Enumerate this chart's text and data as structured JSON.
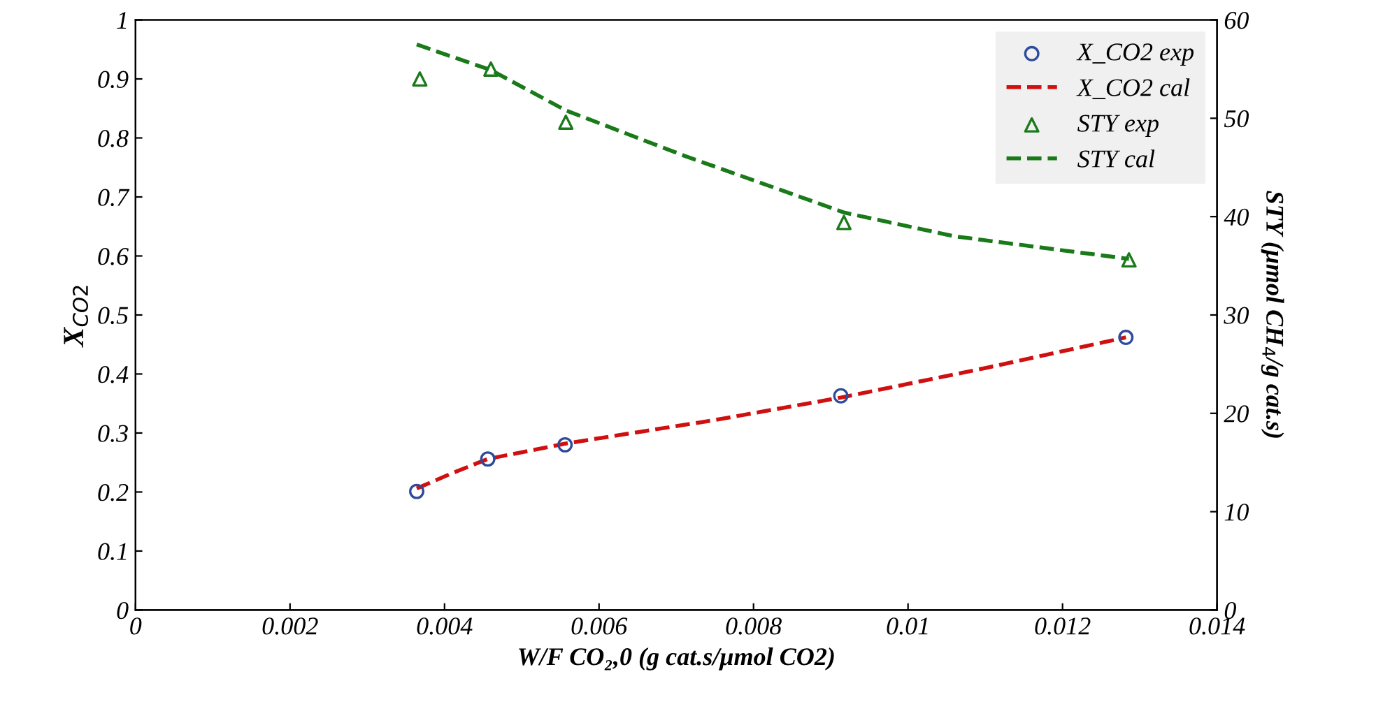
{
  "chart_data": {
    "type": "scatter",
    "xlabel": "W/F CO₂,0 (g cat.s/μmol CO2)",
    "ylabel": "X$_{CO2}$",
    "y2label": "STY (μmol CH$_{4}$/g cat.s)",
    "xlim": [
      0,
      0.014
    ],
    "xticks": [
      0,
      0.002,
      0.004,
      0.006,
      0.008,
      0.01,
      0.012,
      0.014
    ],
    "ylim": [
      0,
      1
    ],
    "yticks": [
      0,
      0.1,
      0.2,
      0.3,
      0.4,
      0.5,
      0.6,
      0.7,
      0.8,
      0.9,
      1
    ],
    "y2lim": [
      0,
      60
    ],
    "y2ticks": [
      0,
      10,
      20,
      30,
      40,
      50,
      60
    ],
    "legend": "top right",
    "grid": false,
    "series": [
      {
        "name": "X_CO2 exp",
        "marker": "circle",
        "color": "#2e4a9a",
        "x": [
          0.00364,
          0.00456,
          0.00556,
          0.00913,
          0.01282
        ],
        "values": [
          0.201,
          0.256,
          0.28,
          0.363,
          0.462
        ]
      },
      {
        "name": "X_CO2 cal",
        "type": "line",
        "line_style": "dashed",
        "color": "#d01010",
        "x": [
          0.00364,
          0.0041,
          0.00456,
          0.0051,
          0.00556,
          0.0075,
          0.00913,
          0.011,
          0.01282
        ],
        "values": [
          0.206,
          0.232,
          0.256,
          0.27,
          0.282,
          0.322,
          0.36,
          0.41,
          0.462
        ]
      },
      {
        "name": "STY exp",
        "marker": "triangle",
        "color": "#1a7a1a",
        "axis": "y2",
        "x": [
          0.00368,
          0.0046,
          0.00557,
          0.00917,
          0.01286
        ],
        "values": [
          54.0,
          55.0,
          49.6,
          39.4,
          35.6
        ]
      },
      {
        "name": "STY cal",
        "type": "line",
        "line_style": "dashed",
        "color": "#1a7a1a",
        "axis": "y2",
        "x": [
          0.00364,
          0.0046,
          0.00557,
          0.0071,
          0.00918,
          0.0106,
          0.01286
        ],
        "values": [
          57.5,
          54.9,
          50.8,
          46.2,
          40.4,
          38.0,
          35.7
        ]
      }
    ]
  }
}
